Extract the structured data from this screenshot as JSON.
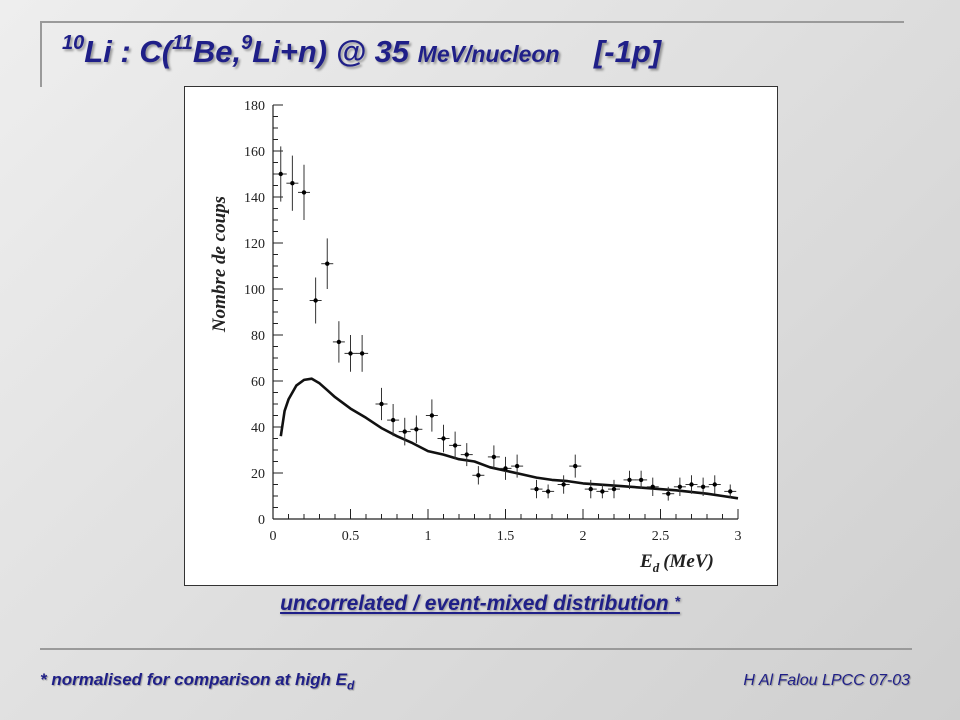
{
  "slide": {
    "title_sup1": "10",
    "title_part1": "Li :  C(",
    "title_sup2": "11",
    "title_part2": "Be,",
    "title_sup3": "9",
    "title_part3": "Li+n) @ 35 ",
    "title_unit": "MeV/nucleon",
    "title_tag": "[-1p]",
    "caption": "uncorrelated / event-mixed distribution",
    "caption_star": "*",
    "footnote": "* normalised for comparison at high E",
    "footnote_sub": "d",
    "credit": "H Al Falou LPCC 07-03"
  },
  "chart_data": {
    "type": "scatter",
    "xlabel": "E",
    "xlabel_sub": "d",
    "xlabel_unit": "(MeV)",
    "ylabel": "Nombre de coups",
    "xlim": [
      0,
      3
    ],
    "ylim": [
      0,
      180
    ],
    "x_ticks": [
      0,
      0.5,
      1,
      1.5,
      2,
      2.5,
      3
    ],
    "x_tick_labels": [
      "0",
      "0.5",
      "1",
      "1.5",
      "2",
      "2.5",
      "3"
    ],
    "y_ticks": [
      0,
      20,
      40,
      60,
      80,
      100,
      120,
      140,
      160,
      180
    ],
    "y_tick_labels": [
      "0",
      "20",
      "40",
      "60",
      "80",
      "100",
      "120",
      "140",
      "160",
      "180"
    ],
    "series": [
      {
        "kind": "points_with_errors",
        "x": [
          0.05,
          0.125,
          0.2,
          0.275,
          0.35,
          0.425,
          0.5,
          0.575,
          0.7,
          0.775,
          0.85,
          0.925,
          1.025,
          1.1,
          1.175,
          1.25,
          1.325,
          1.425,
          1.5,
          1.575,
          1.7,
          1.775,
          1.875,
          1.95,
          2.05,
          2.125,
          2.2,
          2.3,
          2.375,
          2.45,
          2.55,
          2.625,
          2.7,
          2.775,
          2.85,
          2.95
        ],
        "y": [
          150,
          146,
          142,
          95,
          111,
          77,
          72,
          72,
          50,
          43,
          38,
          39,
          45,
          35,
          32,
          28,
          19,
          27,
          22,
          23,
          13,
          12,
          15,
          23,
          13,
          12,
          13,
          17,
          17,
          14,
          11,
          14,
          15,
          14,
          15,
          12
        ],
        "err": [
          12,
          12,
          12,
          10,
          11,
          9,
          8,
          8,
          7,
          7,
          6,
          6,
          7,
          6,
          6,
          5,
          4,
          5,
          5,
          5,
          4,
          3,
          4,
          5,
          4,
          3,
          4,
          4,
          4,
          4,
          3,
          4,
          4,
          4,
          4,
          3
        ]
      },
      {
        "kind": "curve",
        "x": [
          0.05,
          0.075,
          0.1,
          0.15,
          0.2,
          0.25,
          0.3,
          0.35,
          0.4,
          0.5,
          0.6,
          0.7,
          0.8,
          0.9,
          1.0,
          1.1,
          1.2,
          1.3,
          1.4,
          1.5,
          1.6,
          1.7,
          1.8,
          1.9,
          2.0,
          2.2,
          2.4,
          2.6,
          2.8,
          2.9,
          3.0
        ],
        "y": [
          36,
          47,
          52,
          58,
          60.5,
          61,
          59,
          56,
          53,
          48,
          44,
          39.5,
          36,
          33,
          29.5,
          28,
          26,
          25,
          22.5,
          21,
          19.5,
          18,
          17,
          16.5,
          15.5,
          14.5,
          13.5,
          12.5,
          11,
          10,
          9
        ]
      }
    ]
  }
}
